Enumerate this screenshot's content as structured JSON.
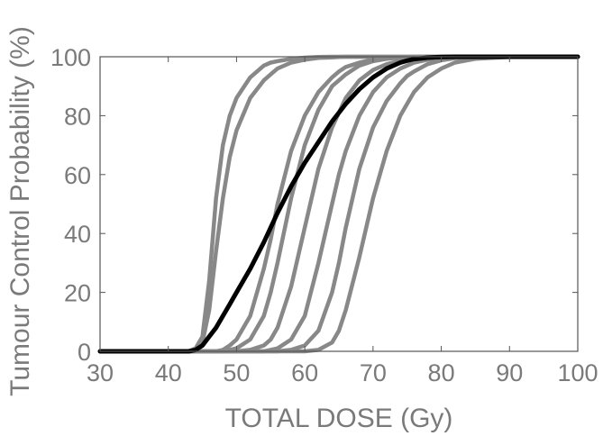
{
  "chart_data": {
    "type": "line",
    "title": "",
    "xlabel": "TOTAL DOSE (Gy)",
    "ylabel": "Tumour Control Probability (%)",
    "xlim": [
      30,
      100
    ],
    "ylim": [
      0,
      100
    ],
    "x_ticks": [
      30,
      40,
      50,
      60,
      70,
      80,
      90,
      100
    ],
    "y_ticks": [
      0,
      20,
      40,
      60,
      80,
      100
    ],
    "grid": false,
    "legend": "none",
    "x": [
      30,
      40,
      42,
      43,
      44,
      45,
      46,
      47,
      48,
      49,
      50,
      52,
      54,
      55,
      56,
      58,
      60,
      62,
      64,
      65,
      66,
      68,
      70,
      72,
      74,
      75,
      76,
      78,
      80,
      82,
      85,
      90,
      95,
      100
    ],
    "series": [
      {
        "color": "#888888",
        "values": [
          0,
          0,
          0,
          0,
          1,
          5,
          24,
          52,
          70,
          80,
          86,
          93,
          97,
          98,
          98.5,
          99.3,
          99.7,
          99.9,
          100,
          100,
          100,
          100,
          100,
          100,
          100,
          100,
          100,
          100,
          100,
          100,
          100,
          100,
          100,
          100
        ]
      },
      {
        "color": "#888888",
        "values": [
          0,
          0,
          0,
          0,
          0.5,
          3,
          14,
          34,
          52,
          66,
          75,
          86,
          92,
          94,
          96,
          98,
          99,
          99.6,
          99.8,
          99.9,
          100,
          100,
          100,
          100,
          100,
          100,
          100,
          100,
          100,
          100,
          100,
          100,
          100,
          100
        ]
      },
      {
        "color": "#888888",
        "values": [
          0,
          0,
          0,
          0,
          0,
          0,
          0,
          0,
          0.5,
          2,
          4,
          12,
          28,
          38,
          50,
          68,
          80,
          88,
          93,
          95,
          96.5,
          98,
          99,
          99.5,
          99.8,
          99.9,
          100,
          100,
          100,
          100,
          100,
          100,
          100,
          100
        ]
      },
      {
        "color": "#888888",
        "values": [
          0,
          0,
          0,
          0,
          0,
          0,
          0,
          0,
          0,
          0.5,
          1,
          4,
          12,
          20,
          30,
          52,
          70,
          82,
          90,
          92,
          94,
          97,
          98.5,
          99.3,
          99.7,
          99.8,
          99.9,
          100,
          100,
          100,
          100,
          100,
          100,
          100
        ]
      },
      {
        "color": "#888888",
        "values": [
          0,
          0,
          0,
          0,
          0,
          0,
          0,
          0,
          0,
          0,
          0,
          0.5,
          2,
          4,
          8,
          22,
          42,
          62,
          76,
          81,
          86,
          92,
          95.5,
          97.5,
          98.6,
          99,
          99.3,
          99.7,
          99.9,
          100,
          100,
          100,
          100,
          100
        ]
      },
      {
        "color": "#888888",
        "values": [
          0,
          0,
          0,
          0,
          0,
          0,
          0,
          0,
          0,
          0,
          0,
          0,
          0,
          0.5,
          1,
          4,
          12,
          30,
          50,
          60,
          68,
          80,
          88,
          93,
          96,
          97,
          98,
          99,
          99.6,
          99.8,
          100,
          100,
          100,
          100
        ]
      },
      {
        "color": "#888888",
        "values": [
          0,
          0,
          0,
          0,
          0,
          0,
          0,
          0,
          0,
          0,
          0,
          0,
          0,
          0,
          0,
          0.5,
          2,
          7,
          20,
          30,
          42,
          62,
          76,
          85,
          91,
          93.5,
          95,
          97.5,
          98.8,
          99.5,
          99.9,
          100,
          100,
          100
        ]
      },
      {
        "color": "#888888",
        "values": [
          0,
          0,
          0,
          0,
          0,
          0,
          0,
          0,
          0,
          0,
          0,
          0,
          0,
          0,
          0,
          0,
          0,
          0.5,
          3,
          7,
          14,
          32,
          52,
          68,
          80,
          84,
          88,
          93,
          96,
          98,
          99.3,
          99.9,
          100,
          100
        ]
      },
      {
        "color": "#000000",
        "values": [
          0,
          0,
          0,
          0,
          0.5,
          2,
          5,
          8,
          12,
          16,
          20,
          28,
          37,
          42,
          47,
          56,
          64,
          71,
          78,
          81,
          84,
          89,
          93,
          96,
          98,
          98.7,
          99.2,
          99.7,
          99.9,
          100,
          100,
          100,
          100,
          100
        ]
      }
    ]
  }
}
